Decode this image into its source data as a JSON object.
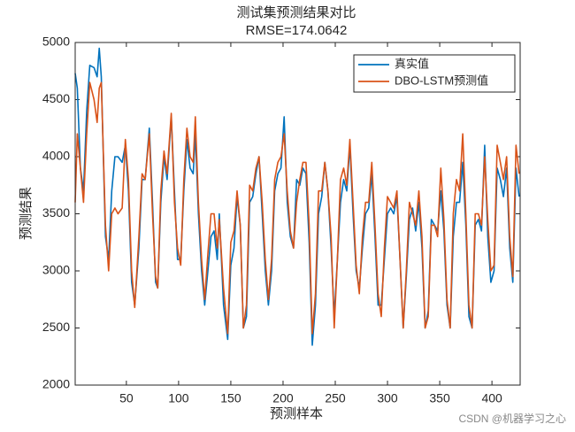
{
  "chart_data": {
    "type": "line",
    "title": "测试集预测结果对比",
    "subtitle": "RMSE=174.0642",
    "xlabel": "预测样本",
    "ylabel": "预测结果",
    "watermark": "CSDN @机器学习之心",
    "legend": "upper right",
    "xlim": [
      1,
      427
    ],
    "ylim": [
      2000,
      5000
    ],
    "xticks": [
      50,
      100,
      150,
      200,
      250,
      300,
      350,
      400
    ],
    "yticks": [
      2000,
      2500,
      3000,
      3500,
      4000,
      4500,
      5000
    ],
    "x": [
      1,
      3,
      6,
      9,
      12,
      15,
      19,
      22,
      24,
      26,
      30,
      33,
      36,
      39,
      42,
      46,
      49,
      52,
      55,
      58,
      62,
      65,
      68,
      72,
      75,
      78,
      80,
      83,
      86,
      89,
      93,
      96,
      99,
      102,
      105,
      108,
      111,
      114,
      116,
      119,
      122,
      125,
      128,
      131,
      134,
      137,
      139,
      143,
      147,
      150,
      153,
      156,
      159,
      162,
      165,
      168,
      171,
      174,
      177,
      180,
      183,
      186,
      189,
      192,
      195,
      198,
      201,
      204,
      207,
      210,
      213,
      216,
      219,
      222,
      225,
      228,
      231,
      234,
      237,
      240,
      243,
      246,
      249,
      252,
      255,
      258,
      261,
      264,
      267,
      270,
      273,
      276,
      279,
      282,
      285,
      288,
      291,
      294,
      297,
      300,
      303,
      306,
      309,
      312,
      315,
      318,
      321,
      324,
      327,
      330,
      333,
      336,
      339,
      342,
      345,
      348,
      351,
      354,
      357,
      360,
      363,
      366,
      369,
      372,
      375,
      378,
      381,
      384,
      387,
      390,
      393,
      396,
      399,
      402,
      405,
      408,
      411,
      414,
      417,
      420,
      423,
      426
    ],
    "series": [
      {
        "name": "真实值",
        "color": "#0072bd",
        "values": [
          4730,
          4600,
          3900,
          3700,
          4400,
          4800,
          4780,
          4700,
          4950,
          4700,
          3300,
          3100,
          3700,
          4000,
          4000,
          3950,
          4100,
          3700,
          2900,
          2700,
          3200,
          3800,
          3800,
          4250,
          3600,
          2900,
          2850,
          3600,
          4000,
          3800,
          4350,
          3700,
          3100,
          3100,
          3700,
          4150,
          3900,
          3850,
          4200,
          3500,
          3000,
          2700,
          3000,
          3300,
          3350,
          3100,
          3500,
          2700,
          2400,
          3050,
          3200,
          3650,
          3400,
          2500,
          2600,
          3600,
          3650,
          3850,
          4000,
          3500,
          3000,
          2700,
          3000,
          3700,
          3850,
          3900,
          4350,
          3600,
          3300,
          3200,
          3800,
          3750,
          3900,
          3850,
          3250,
          2350,
          2700,
          3500,
          3650,
          3950,
          3700,
          3200,
          2600,
          3100,
          3600,
          3800,
          3700,
          4100,
          3500,
          3000,
          2850,
          3200,
          3500,
          3550,
          3850,
          3300,
          2700,
          2700,
          3100,
          3500,
          3550,
          3500,
          3650,
          3100,
          2500,
          2950,
          3450,
          3550,
          3350,
          3600,
          3200,
          2500,
          2650,
          3450,
          3400,
          3350,
          3700,
          3350,
          2700,
          2500,
          3300,
          3600,
          3600,
          3950,
          3400,
          2600,
          2500,
          3400,
          3450,
          3350,
          4100,
          3300,
          2900,
          3000,
          3900,
          3800,
          3650,
          3900,
          3200,
          2900,
          3900,
          3650
        ]
      },
      {
        "name": "DBO-LSTM预测值",
        "color": "#d95319",
        "values": [
          3600,
          4200,
          3900,
          3600,
          4200,
          4650,
          4500,
          4300,
          4600,
          4650,
          3400,
          3000,
          3500,
          3550,
          3500,
          3550,
          4150,
          3800,
          3000,
          2680,
          3300,
          3850,
          3800,
          4200,
          3500,
          2950,
          2850,
          3700,
          4050,
          3850,
          4380,
          3600,
          3200,
          3050,
          3800,
          4250,
          4000,
          3950,
          4350,
          3600,
          3100,
          2750,
          3150,
          3500,
          3500,
          3200,
          3450,
          2850,
          2450,
          3250,
          3350,
          3700,
          3400,
          2500,
          2700,
          3750,
          3700,
          3900,
          4000,
          3600,
          3100,
          2750,
          3100,
          3800,
          3950,
          4000,
          4200,
          3700,
          3350,
          3200,
          3600,
          3800,
          3950,
          3950,
          3400,
          2450,
          2800,
          3700,
          3700,
          3950,
          3700,
          3300,
          2500,
          3100,
          3800,
          3900,
          3750,
          4150,
          3600,
          3050,
          2800,
          3300,
          3600,
          3600,
          3950,
          3400,
          2800,
          2600,
          3200,
          3650,
          3600,
          3550,
          3700,
          3100,
          2500,
          3000,
          3600,
          3500,
          3400,
          3700,
          3300,
          2500,
          2600,
          3400,
          3400,
          3300,
          3900,
          3450,
          2750,
          2500,
          3500,
          3800,
          3700,
          4200,
          3500,
          2700,
          2500,
          3500,
          3500,
          3400,
          4000,
          3450,
          3000,
          3050,
          4100,
          3950,
          3800,
          4000,
          3300,
          2950,
          4100,
          3850
        ]
      }
    ]
  }
}
